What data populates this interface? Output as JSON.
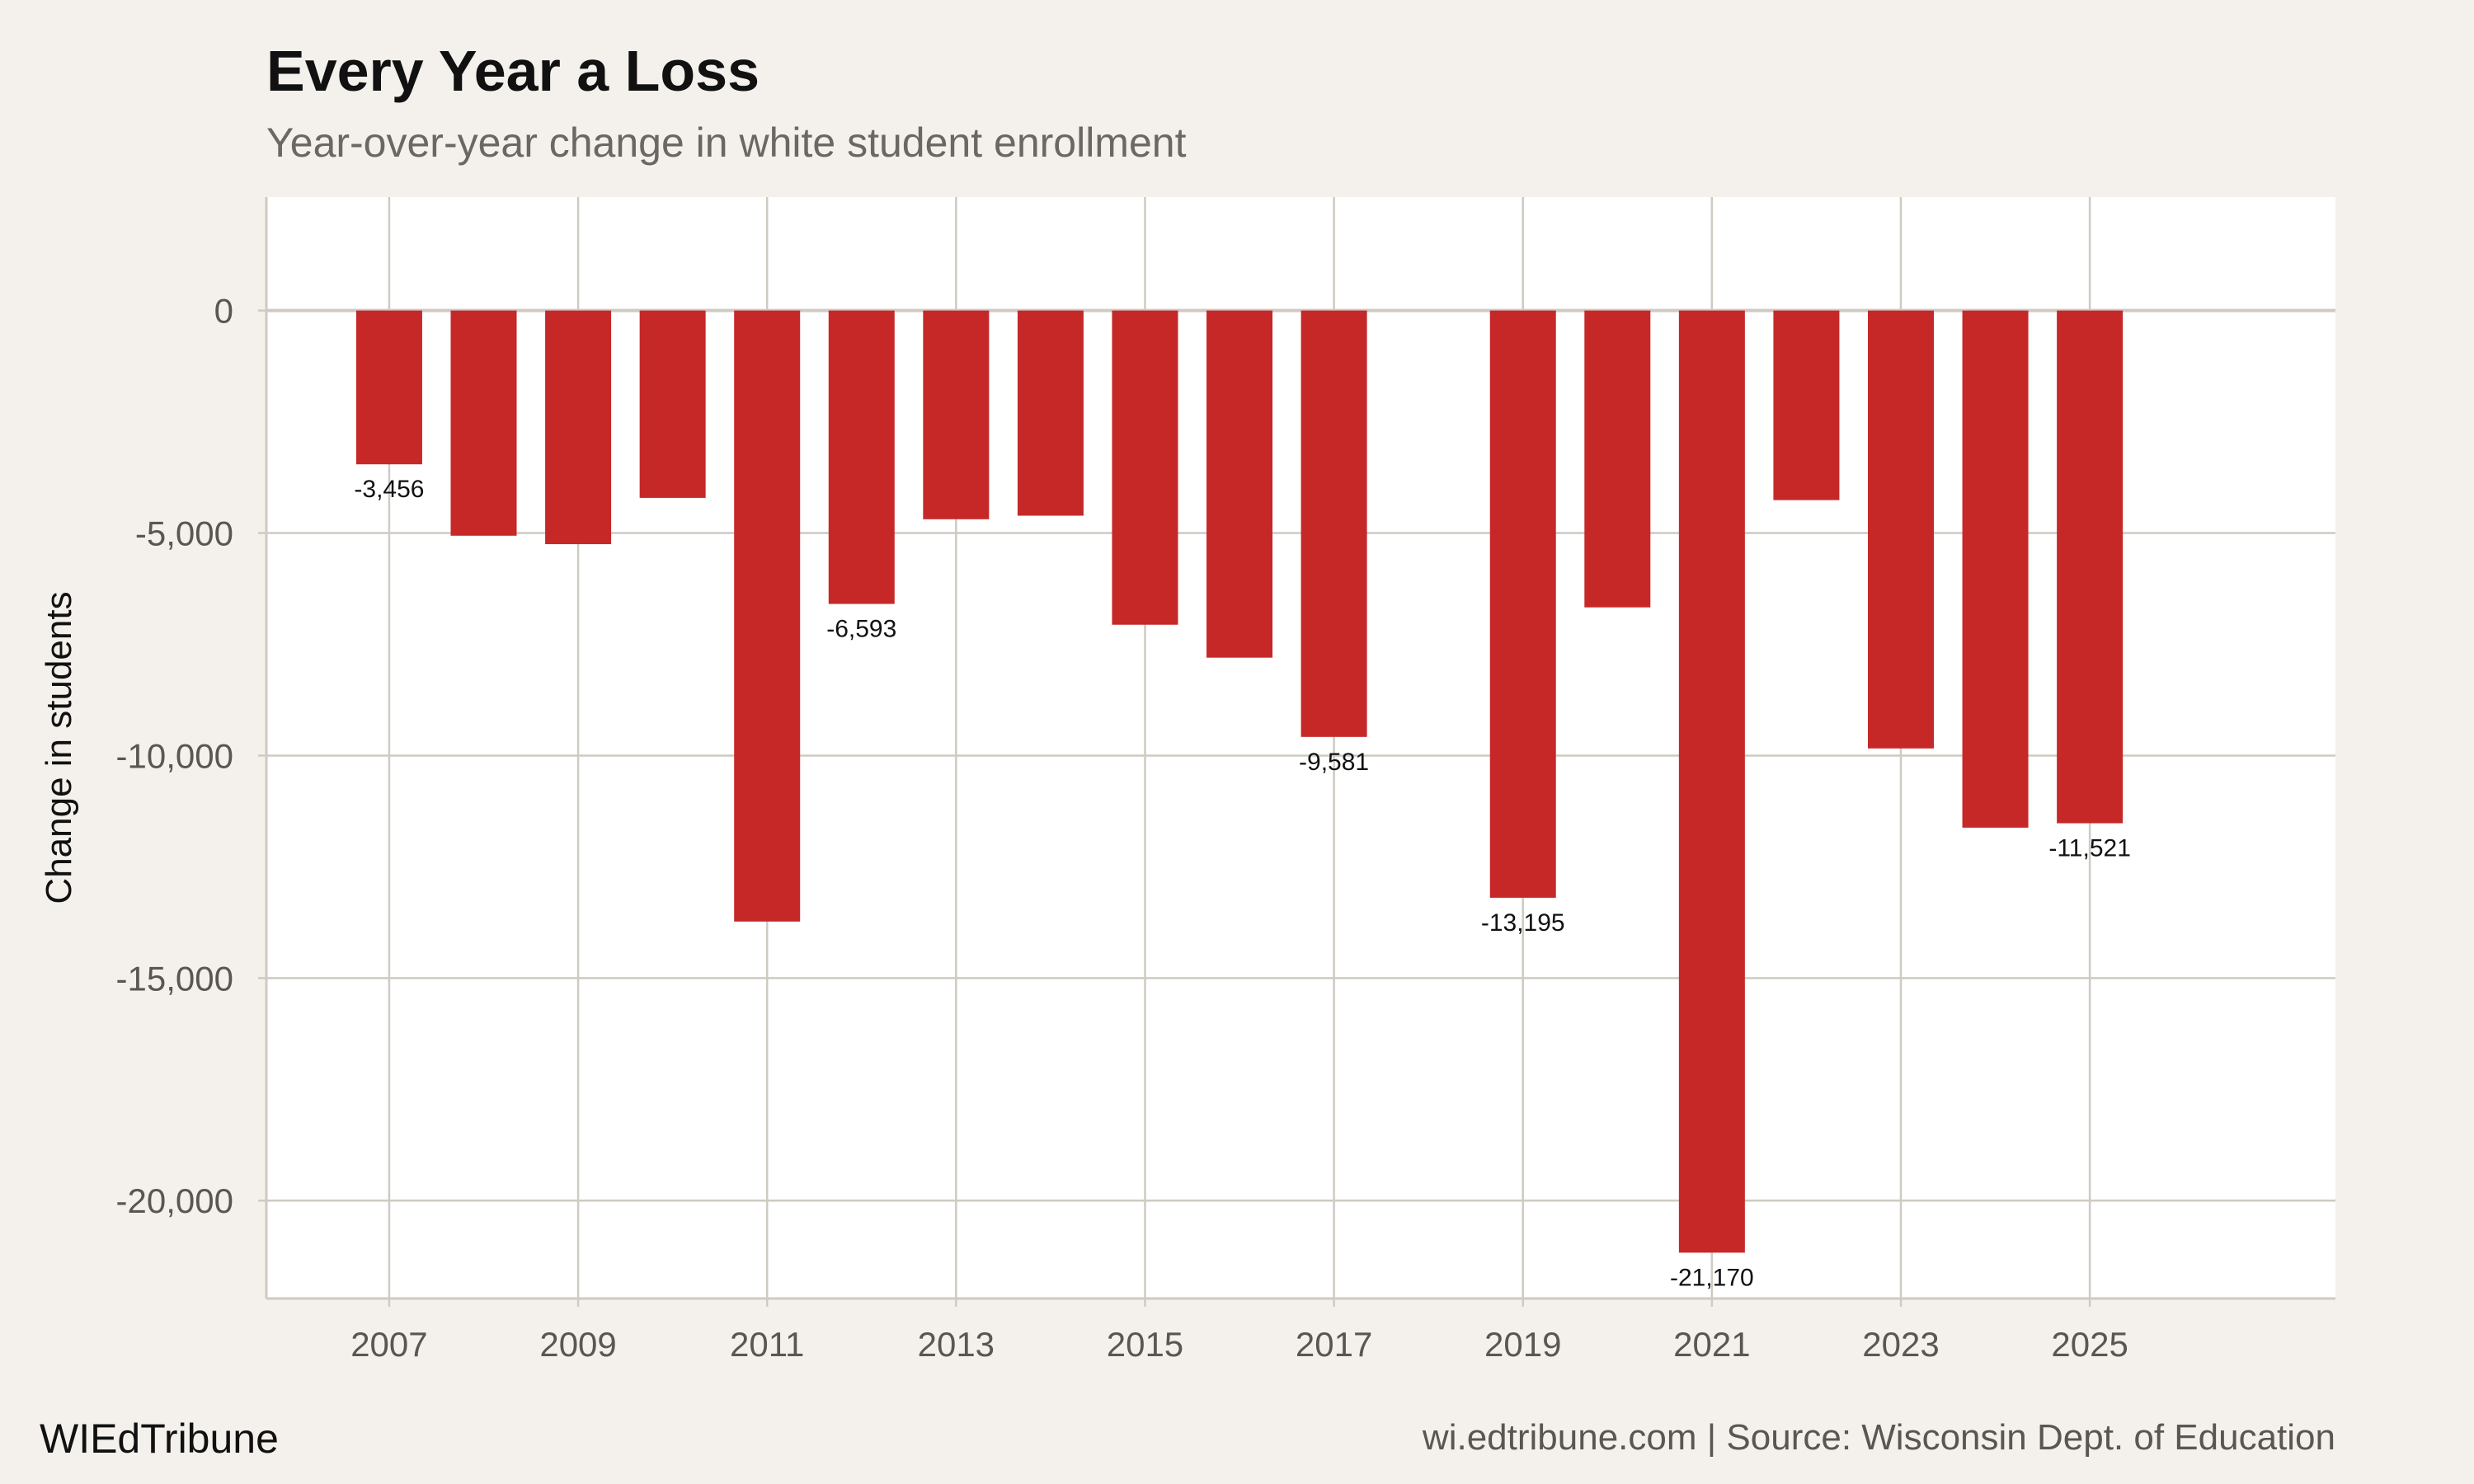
{
  "chart_data": {
    "type": "bar",
    "title": "Every Year a Loss",
    "subtitle": "Year-over-year change in white student enrollment",
    "xlabel": "",
    "ylabel": "Change in students",
    "x": [
      2007,
      2008,
      2009,
      2010,
      2011,
      2012,
      2013,
      2014,
      2015,
      2016,
      2017,
      2019,
      2020,
      2021,
      2022,
      2023,
      2024,
      2025
    ],
    "values": [
      -3456,
      -5060,
      -5250,
      -4210,
      -13730,
      -6593,
      -4690,
      -4610,
      -7060,
      -7800,
      -9581,
      -13195,
      -6670,
      -21170,
      -4260,
      -9840,
      -11620,
      -11521
    ],
    "data_labels": [
      "-3,456",
      null,
      null,
      null,
      null,
      "-6,593",
      null,
      null,
      null,
      null,
      "-9,581",
      "-13,195",
      null,
      "-21,170",
      null,
      null,
      null,
      "-11,521"
    ],
    "xticks": [
      "2007",
      "2009",
      "2011",
      "2013",
      "2015",
      "2017",
      "2019",
      "2021",
      "2023",
      "2025"
    ],
    "yticks": [
      0,
      -5000,
      -10000,
      -15000,
      -20000
    ],
    "ytick_labels": [
      "0",
      "-5,000",
      "-10,000",
      "-15,000",
      "-20,000"
    ],
    "xlim": [
      2005.7,
      2027.6
    ],
    "ylim": [
      -22200,
      2550
    ],
    "grid": true,
    "legend": "none",
    "bar_color": "#c62828"
  },
  "footer": {
    "brand": "WIEdTribune",
    "source": "wi.edtribune.com | Source: Wisconsin Dept. of Education"
  }
}
